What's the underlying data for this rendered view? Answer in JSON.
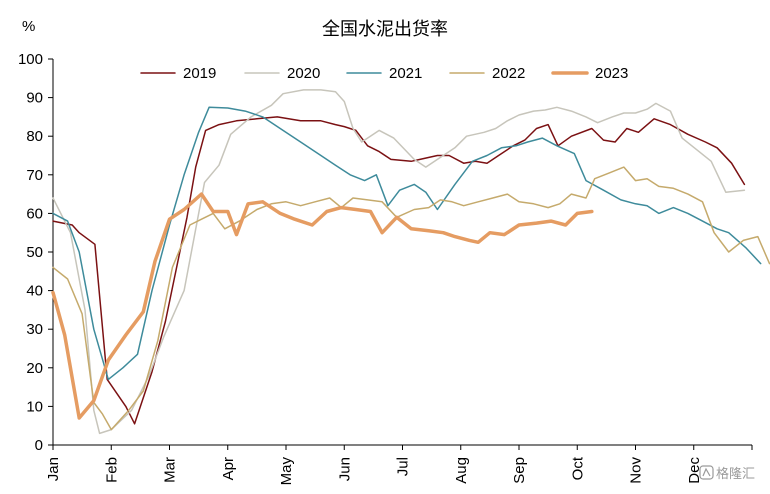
{
  "chart_data": {
    "type": "line",
    "title": "全国水泥出货率",
    "ylabel": "%",
    "xlabel": "",
    "ylim": [
      0,
      100
    ],
    "yticks": [
      0,
      10,
      20,
      30,
      40,
      50,
      60,
      70,
      80,
      90,
      100
    ],
    "xlim": [
      0,
      12
    ],
    "x_unit": "month (0 = start of Jan)",
    "month_labels": [
      "Jan",
      "Feb",
      "Mar",
      "Apr",
      "May",
      "Jun",
      "Jul",
      "Aug",
      "Sep",
      "Oct",
      "Nov",
      "Dec"
    ],
    "grid": false,
    "legend_position": "top",
    "series": [
      {
        "name": "2019",
        "color": "#7b1113",
        "width": 1.5,
        "points": [
          [
            0,
            58
          ],
          [
            0.33,
            57
          ],
          [
            0.45,
            55
          ],
          [
            0.72,
            52
          ],
          [
            0.93,
            17
          ],
          [
            1.25,
            10
          ],
          [
            1.4,
            5.5
          ],
          [
            1.7,
            19
          ],
          [
            1.93,
            32
          ],
          [
            2.3,
            59
          ],
          [
            2.45,
            72
          ],
          [
            2.62,
            81.5
          ],
          [
            2.85,
            83
          ],
          [
            3.15,
            84
          ],
          [
            3.5,
            84.5
          ],
          [
            3.85,
            85
          ],
          [
            4.25,
            84
          ],
          [
            4.6,
            84
          ],
          [
            4.85,
            83
          ],
          [
            5.0,
            82.5
          ],
          [
            5.2,
            81.5
          ],
          [
            5.4,
            77.5
          ],
          [
            5.6,
            76
          ],
          [
            5.8,
            74
          ],
          [
            6.15,
            73.5
          ],
          [
            6.3,
            74
          ],
          [
            6.6,
            75
          ],
          [
            6.8,
            75
          ],
          [
            7.05,
            73
          ],
          [
            7.25,
            73.5
          ],
          [
            7.45,
            73
          ],
          [
            7.65,
            75
          ],
          [
            7.9,
            77.5
          ],
          [
            8.1,
            79
          ],
          [
            8.3,
            82
          ],
          [
            8.5,
            83
          ],
          [
            8.67,
            77.5
          ],
          [
            8.9,
            80
          ],
          [
            9.25,
            82
          ],
          [
            9.45,
            79
          ],
          [
            9.65,
            78.5
          ],
          [
            9.85,
            82
          ],
          [
            10.05,
            81
          ],
          [
            10.32,
            84.5
          ],
          [
            10.6,
            83
          ],
          [
            10.9,
            80.5
          ],
          [
            11.2,
            78.5
          ],
          [
            11.4,
            77
          ],
          [
            11.65,
            73
          ],
          [
            11.87,
            67.5
          ]
        ]
      },
      {
        "name": "2020",
        "color": "#c7c5bb",
        "width": 1.5,
        "points": [
          [
            0,
            64
          ],
          [
            0.3,
            55
          ],
          [
            0.55,
            35
          ],
          [
            0.7,
            9
          ],
          [
            0.8,
            3
          ],
          [
            1.0,
            4
          ],
          [
            1.35,
            9
          ],
          [
            1.65,
            18
          ],
          [
            1.9,
            28
          ],
          [
            2.25,
            40
          ],
          [
            2.6,
            68
          ],
          [
            2.85,
            72.5
          ],
          [
            3.05,
            80.5
          ],
          [
            3.4,
            85
          ],
          [
            3.75,
            88
          ],
          [
            3.95,
            91
          ],
          [
            4.3,
            92
          ],
          [
            4.6,
            92
          ],
          [
            4.85,
            91.5
          ],
          [
            5.0,
            89
          ],
          [
            5.15,
            82
          ],
          [
            5.3,
            78.5
          ],
          [
            5.6,
            81.5
          ],
          [
            5.85,
            79.5
          ],
          [
            6.2,
            74
          ],
          [
            6.4,
            72
          ],
          [
            6.6,
            74
          ],
          [
            6.9,
            77
          ],
          [
            7.1,
            80
          ],
          [
            7.4,
            81
          ],
          [
            7.6,
            82
          ],
          [
            7.8,
            84
          ],
          [
            8.0,
            85.5
          ],
          [
            8.25,
            86.5
          ],
          [
            8.45,
            86.8
          ],
          [
            8.65,
            87.5
          ],
          [
            8.9,
            86.5
          ],
          [
            9.15,
            85
          ],
          [
            9.35,
            83.5
          ],
          [
            9.6,
            85
          ],
          [
            9.8,
            86
          ],
          [
            10.0,
            86
          ],
          [
            10.2,
            87
          ],
          [
            10.35,
            88.5
          ],
          [
            10.6,
            86.5
          ],
          [
            10.8,
            79.5
          ],
          [
            11.05,
            76.5
          ],
          [
            11.3,
            73.5
          ],
          [
            11.55,
            65.5
          ],
          [
            11.87,
            66
          ]
        ]
      },
      {
        "name": "2021",
        "color": "#3e8b9b",
        "width": 1.5,
        "points": [
          [
            0,
            60
          ],
          [
            0.25,
            58
          ],
          [
            0.45,
            50
          ],
          [
            0.7,
            30
          ],
          [
            0.95,
            17
          ],
          [
            1.2,
            20
          ],
          [
            1.45,
            23.5
          ],
          [
            1.7,
            40
          ],
          [
            2.0,
            57
          ],
          [
            2.25,
            70
          ],
          [
            2.5,
            81
          ],
          [
            2.68,
            87.5
          ],
          [
            3.0,
            87.3
          ],
          [
            3.3,
            86.5
          ],
          [
            3.6,
            85
          ],
          [
            3.9,
            82
          ],
          [
            4.25,
            78.5
          ],
          [
            4.6,
            75
          ],
          [
            4.85,
            72.5
          ],
          [
            5.1,
            70
          ],
          [
            5.35,
            68.5
          ],
          [
            5.55,
            70
          ],
          [
            5.75,
            62
          ],
          [
            5.95,
            66
          ],
          [
            6.2,
            67.5
          ],
          [
            6.4,
            65.5
          ],
          [
            6.6,
            61
          ],
          [
            6.9,
            67.5
          ],
          [
            7.2,
            73.5
          ],
          [
            7.45,
            75
          ],
          [
            7.7,
            77
          ],
          [
            7.95,
            77.5
          ],
          [
            8.15,
            78.5
          ],
          [
            8.4,
            79.5
          ],
          [
            8.65,
            77.5
          ],
          [
            8.95,
            75.5
          ],
          [
            9.15,
            68.5
          ],
          [
            9.45,
            66
          ],
          [
            9.75,
            63.5
          ],
          [
            10.0,
            62.5
          ],
          [
            10.2,
            62
          ],
          [
            10.4,
            60
          ],
          [
            10.65,
            61.5
          ],
          [
            10.9,
            60
          ],
          [
            11.15,
            58
          ],
          [
            11.4,
            56
          ],
          [
            11.6,
            55
          ],
          [
            11.9,
            51
          ],
          [
            12.15,
            47
          ]
        ]
      },
      {
        "name": "2022",
        "color": "#c5aa6c",
        "width": 1.5,
        "points": [
          [
            0,
            46
          ],
          [
            0.25,
            43
          ],
          [
            0.5,
            34
          ],
          [
            0.7,
            11
          ],
          [
            0.85,
            8
          ],
          [
            1.0,
            4
          ],
          [
            1.3,
            9
          ],
          [
            1.55,
            14
          ],
          [
            1.8,
            27
          ],
          [
            2.05,
            46
          ],
          [
            2.35,
            57
          ],
          [
            2.55,
            58.5
          ],
          [
            2.75,
            60
          ],
          [
            2.95,
            56
          ],
          [
            3.2,
            58
          ],
          [
            3.5,
            61
          ],
          [
            3.75,
            62.5
          ],
          [
            4.0,
            63
          ],
          [
            4.25,
            62
          ],
          [
            4.5,
            63
          ],
          [
            4.75,
            64
          ],
          [
            4.95,
            61.5
          ],
          [
            5.15,
            64
          ],
          [
            5.4,
            63.5
          ],
          [
            5.65,
            63
          ],
          [
            5.9,
            59
          ],
          [
            6.2,
            61
          ],
          [
            6.45,
            61.5
          ],
          [
            6.65,
            63.5
          ],
          [
            6.85,
            63
          ],
          [
            7.05,
            62
          ],
          [
            7.3,
            63
          ],
          [
            7.55,
            64
          ],
          [
            7.8,
            65
          ],
          [
            8.0,
            63
          ],
          [
            8.25,
            62.5
          ],
          [
            8.5,
            61.5
          ],
          [
            8.7,
            62.5
          ],
          [
            8.9,
            65
          ],
          [
            9.15,
            64
          ],
          [
            9.3,
            69
          ],
          [
            9.55,
            70.5
          ],
          [
            9.8,
            72
          ],
          [
            10.0,
            68.5
          ],
          [
            10.2,
            69
          ],
          [
            10.4,
            67
          ],
          [
            10.65,
            66.5
          ],
          [
            10.9,
            65
          ],
          [
            11.15,
            63
          ],
          [
            11.35,
            55
          ],
          [
            11.6,
            50
          ],
          [
            11.85,
            53
          ],
          [
            12.1,
            54
          ],
          [
            12.3,
            47
          ]
        ]
      },
      {
        "name": "2023",
        "color": "#e59c62",
        "width": 3.5,
        "points": [
          [
            0,
            39.5
          ],
          [
            0.2,
            28.5
          ],
          [
            0.45,
            7
          ],
          [
            0.7,
            11.5
          ],
          [
            0.95,
            22
          ],
          [
            1.25,
            28.5
          ],
          [
            1.55,
            34.5
          ],
          [
            1.75,
            47.5
          ],
          [
            2.0,
            58.5
          ],
          [
            2.25,
            61
          ],
          [
            2.55,
            65
          ],
          [
            2.75,
            60.5
          ],
          [
            3.0,
            60.5
          ],
          [
            3.15,
            54.5
          ],
          [
            3.35,
            62.5
          ],
          [
            3.6,
            63
          ],
          [
            3.9,
            60
          ],
          [
            4.15,
            58.5
          ],
          [
            4.45,
            57
          ],
          [
            4.7,
            60.5
          ],
          [
            4.95,
            61.5
          ],
          [
            5.2,
            61
          ],
          [
            5.45,
            60.5
          ],
          [
            5.65,
            55
          ],
          [
            5.9,
            59
          ],
          [
            6.15,
            56
          ],
          [
            6.45,
            55.5
          ],
          [
            6.7,
            55
          ],
          [
            6.9,
            54
          ],
          [
            7.15,
            53
          ],
          [
            7.3,
            52.5
          ],
          [
            7.5,
            55
          ],
          [
            7.75,
            54.5
          ],
          [
            8.0,
            57
          ],
          [
            8.3,
            57.5
          ],
          [
            8.55,
            58
          ],
          [
            8.8,
            57
          ],
          [
            9.0,
            60
          ],
          [
            9.25,
            60.5
          ]
        ]
      }
    ],
    "watermark": "格隆汇"
  }
}
